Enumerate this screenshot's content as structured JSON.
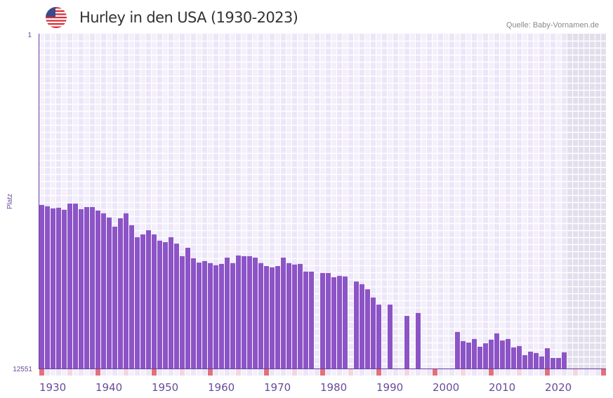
{
  "header": {
    "title": "Hurley in den USA (1930-2023)",
    "source": "Quelle: Baby-Vornamen.de",
    "flag_icon": "us-flag-icon"
  },
  "colors": {
    "bar": "#8c54c6",
    "axis": "#6a3fa0",
    "decade_marker": "#e3707a",
    "half_decade_marker": "#f4d6de",
    "col_a": "#f3f0fb",
    "col_b": "#ece6f8",
    "future": "#e2deec"
  },
  "chart_data": {
    "type": "bar",
    "title": "Hurley in den USA (1930-2023)",
    "xlabel": "",
    "ylabel": "Platz",
    "ylim": [
      1,
      12551
    ],
    "y_inverted": true,
    "y_ticks": [
      "1",
      "12551"
    ],
    "x_range": [
      1930,
      2030
    ],
    "x_ticks": [
      "1930",
      "1940",
      "1950",
      "1960",
      "1970",
      "1980",
      "1990",
      "2000",
      "2010",
      "2020"
    ],
    "years": [
      1930,
      1931,
      1932,
      1933,
      1934,
      1935,
      1936,
      1937,
      1938,
      1939,
      1940,
      1941,
      1942,
      1943,
      1944,
      1945,
      1946,
      1947,
      1948,
      1949,
      1950,
      1951,
      1952,
      1953,
      1954,
      1955,
      1956,
      1957,
      1958,
      1959,
      1960,
      1961,
      1962,
      1963,
      1964,
      1965,
      1966,
      1967,
      1968,
      1969,
      1970,
      1971,
      1972,
      1973,
      1974,
      1975,
      1976,
      1977,
      1978,
      1979,
      1980,
      1981,
      1982,
      1983,
      1984,
      1985,
      1986,
      1987,
      1988,
      1989,
      1990,
      1991,
      1992,
      1993,
      1994,
      1995,
      1996,
      1997,
      1998,
      1999,
      2000,
      2001,
      2002,
      2003,
      2004,
      2005,
      2006,
      2007,
      2008,
      2009,
      2010,
      2011,
      2012,
      2013,
      2014,
      2015,
      2016,
      2017,
      2018,
      2019,
      2020,
      2021,
      2022,
      2023
    ],
    "values": [
      6420,
      6470,
      6550,
      6525,
      6600,
      6370,
      6370,
      6580,
      6500,
      6500,
      6630,
      6735,
      6890,
      7235,
      6920,
      6735,
      7180,
      7630,
      7525,
      7370,
      7525,
      7760,
      7815,
      7630,
      7870,
      8340,
      8025,
      8420,
      8580,
      8525,
      8600,
      8680,
      8630,
      8395,
      8600,
      8315,
      8340,
      8340,
      8395,
      8600,
      8710,
      8760,
      8710,
      8395,
      8600,
      8655,
      8630,
      8920,
      8920,
      null,
      8970,
      8970,
      9130,
      9080,
      9100,
      null,
      9290,
      9390,
      9580,
      9890,
      10155,
      null,
      10155,
      null,
      null,
      10580,
      null,
      10470,
      null,
      null,
      null,
      null,
      null,
      null,
      11180,
      11525,
      11580,
      11445,
      11735,
      11605,
      11470,
      11235,
      11500,
      11445,
      11760,
      11710,
      12050,
      11920,
      11970,
      12100,
      11790,
      12155,
      12155,
      11945
    ]
  }
}
